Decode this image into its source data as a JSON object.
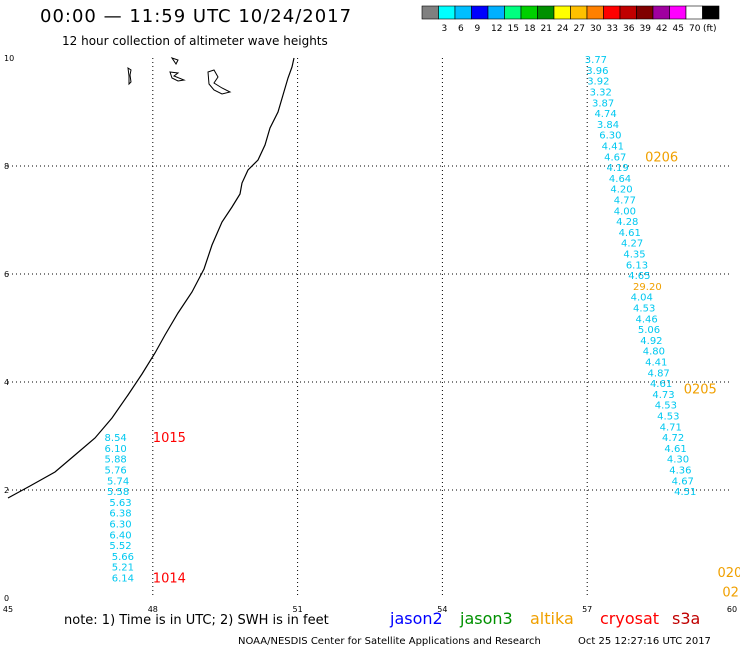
{
  "header": {
    "title": "00:00 — 11:59 UTC 10/24/2017",
    "subtitle": "12 hour collection of altimeter wave heights"
  },
  "color_scale": {
    "unit": "(ft)",
    "swatches": [
      {
        "color": "#808080",
        "label": ""
      },
      {
        "color": "#00ffff",
        "label": "3"
      },
      {
        "color": "#00bfff",
        "label": "6"
      },
      {
        "color": "#0000ff",
        "label": "9"
      },
      {
        "color": "#00b0ff",
        "label": "12"
      },
      {
        "color": "#00ff80",
        "label": "15"
      },
      {
        "color": "#00d000",
        "label": "18"
      },
      {
        "color": "#009000",
        "label": "21"
      },
      {
        "color": "#ffff00",
        "label": "24"
      },
      {
        "color": "#ffc000",
        "label": "27"
      },
      {
        "color": "#ff8000",
        "label": "30"
      },
      {
        "color": "#ff0000",
        "label": "33"
      },
      {
        "color": "#c00000",
        "label": "36"
      },
      {
        "color": "#800000",
        "label": "39"
      },
      {
        "color": "#a000a0",
        "label": "42"
      },
      {
        "color": "#ff00ff",
        "label": "45"
      },
      {
        "color": "#ffffff",
        "label": "70"
      },
      {
        "color": "#000000",
        "label": ""
      }
    ]
  },
  "axes": {
    "x_ticks": [
      "45",
      "48",
      "51",
      "54",
      "57",
      "60"
    ],
    "y_ticks": [
      "0",
      "2",
      "4",
      "6",
      "8",
      "10"
    ],
    "x_range": [
      45,
      60
    ],
    "y_range": [
      0,
      10
    ],
    "grid": true
  },
  "chart_data": {
    "type": "scatter",
    "series": [
      {
        "name": "jason2",
        "color": "#00c8f0",
        "points": [
          {
            "lon": 47.0,
            "lat": 2.98,
            "value": "8.54"
          },
          {
            "lon": 47.0,
            "lat": 2.78,
            "value": "6.10"
          },
          {
            "lon": 47.0,
            "lat": 2.58,
            "value": "5.88"
          },
          {
            "lon": 47.0,
            "lat": 2.38,
            "value": "5.76"
          },
          {
            "lon": 47.05,
            "lat": 2.18,
            "value": "5.74"
          },
          {
            "lon": 47.05,
            "lat": 1.98,
            "value": "5.58"
          },
          {
            "lon": 47.1,
            "lat": 1.78,
            "value": "5.63"
          },
          {
            "lon": 47.1,
            "lat": 1.58,
            "value": "6.38"
          },
          {
            "lon": 47.1,
            "lat": 1.38,
            "value": "6.30"
          },
          {
            "lon": 47.1,
            "lat": 1.18,
            "value": "6.40"
          },
          {
            "lon": 47.1,
            "lat": 0.98,
            "value": "5.52"
          },
          {
            "lon": 47.15,
            "lat": 0.78,
            "value": "5.66"
          },
          {
            "lon": 47.15,
            "lat": 0.58,
            "value": "5.21"
          },
          {
            "lon": 47.15,
            "lat": 0.38,
            "value": "6.14"
          },
          {
            "lon": 56.95,
            "lat": 9.98,
            "value": "3.77"
          },
          {
            "lon": 56.98,
            "lat": 9.78,
            "value": "3.96"
          },
          {
            "lon": 57.0,
            "lat": 9.58,
            "value": "3.92"
          },
          {
            "lon": 57.05,
            "lat": 9.38,
            "value": "3.32"
          },
          {
            "lon": 57.1,
            "lat": 9.18,
            "value": "3.87"
          },
          {
            "lon": 57.15,
            "lat": 8.98,
            "value": "4.74"
          },
          {
            "lon": 57.2,
            "lat": 8.78,
            "value": "3.84"
          },
          {
            "lon": 57.25,
            "lat": 8.58,
            "value": "6.30"
          },
          {
            "lon": 57.3,
            "lat": 8.38,
            "value": "4.41"
          },
          {
            "lon": 57.35,
            "lat": 8.18,
            "value": "4.67"
          },
          {
            "lon": 57.4,
            "lat": 7.98,
            "value": "4.19"
          },
          {
            "lon": 57.45,
            "lat": 7.78,
            "value": "4.64"
          },
          {
            "lon": 57.48,
            "lat": 7.58,
            "value": "4.20"
          },
          {
            "lon": 57.55,
            "lat": 7.38,
            "value": "4.77"
          },
          {
            "lon": 57.55,
            "lat": 7.18,
            "value": "4.00"
          },
          {
            "lon": 57.6,
            "lat": 6.98,
            "value": "4.28"
          },
          {
            "lon": 57.65,
            "lat": 6.78,
            "value": "4.61"
          },
          {
            "lon": 57.7,
            "lat": 6.58,
            "value": "4.27"
          },
          {
            "lon": 57.75,
            "lat": 6.38,
            "value": "4.35"
          },
          {
            "lon": 57.8,
            "lat": 6.18,
            "value": "6.13"
          },
          {
            "lon": 57.85,
            "lat": 5.98,
            "value": "4.65"
          },
          {
            "lon": 57.9,
            "lat": 5.58,
            "value": "4.04"
          },
          {
            "lon": 57.95,
            "lat": 5.38,
            "value": "4.53"
          },
          {
            "lon": 58.0,
            "lat": 5.18,
            "value": "4.46"
          },
          {
            "lon": 58.05,
            "lat": 4.98,
            "value": "5.06"
          },
          {
            "lon": 58.1,
            "lat": 4.78,
            "value": "4.92"
          },
          {
            "lon": 58.15,
            "lat": 4.58,
            "value": "4.80"
          },
          {
            "lon": 58.2,
            "lat": 4.38,
            "value": "4.41"
          },
          {
            "lon": 58.25,
            "lat": 4.18,
            "value": "4.87"
          },
          {
            "lon": 58.3,
            "lat": 3.98,
            "value": "4.61"
          },
          {
            "lon": 58.35,
            "lat": 3.78,
            "value": "4.73"
          },
          {
            "lon": 58.4,
            "lat": 3.58,
            "value": "4.53"
          },
          {
            "lon": 58.45,
            "lat": 3.38,
            "value": "4.53"
          },
          {
            "lon": 58.5,
            "lat": 3.18,
            "value": "4.71"
          },
          {
            "lon": 58.55,
            "lat": 2.98,
            "value": "4.72"
          },
          {
            "lon": 58.6,
            "lat": 2.78,
            "value": "4.61"
          },
          {
            "lon": 58.65,
            "lat": 2.58,
            "value": "4.30"
          },
          {
            "lon": 58.7,
            "lat": 2.38,
            "value": "4.36"
          },
          {
            "lon": 58.75,
            "lat": 2.18,
            "value": "4.67"
          },
          {
            "lon": 58.8,
            "lat": 1.98,
            "value": "4.51"
          }
        ]
      },
      {
        "name": "altika",
        "color": "#f0a000",
        "points": [
          {
            "lon": 57.95,
            "lat": 5.78,
            "value": "29.20"
          }
        ]
      }
    ],
    "track_labels": [
      {
        "text": "1015",
        "lon": 48.0,
        "lat": 2.98,
        "color": "#ff0000"
      },
      {
        "text": "1014",
        "lon": 48.0,
        "lat": 0.38,
        "color": "#ff0000"
      },
      {
        "text": "0206",
        "lon": 58.2,
        "lat": 8.18,
        "color": "#f0a000"
      },
      {
        "text": "0205",
        "lon": 59.0,
        "lat": 3.88,
        "color": "#f0a000"
      },
      {
        "text": "020",
        "lon": 59.7,
        "lat": 0.48,
        "color": "#f0a000"
      },
      {
        "text": "02",
        "lon": 59.8,
        "lat": 0.12,
        "color": "#f0a000"
      }
    ]
  },
  "footer": {
    "note": "note: 1) Time is in UTC; 2) SWH is in feet",
    "satellites": [
      {
        "name": "jason2",
        "color": "#0000ff"
      },
      {
        "name": "jason3",
        "color": "#009000"
      },
      {
        "name": "altika",
        "color": "#f0a000"
      },
      {
        "name": "cryosat",
        "color": "#ff0000"
      },
      {
        "name": "s3a",
        "color": "#c00000"
      }
    ],
    "credit": "NOAA/NESDIS Center for Satellite Applications and Research",
    "timestamp": "Oct 25 12:27:16 UTC 2017"
  }
}
